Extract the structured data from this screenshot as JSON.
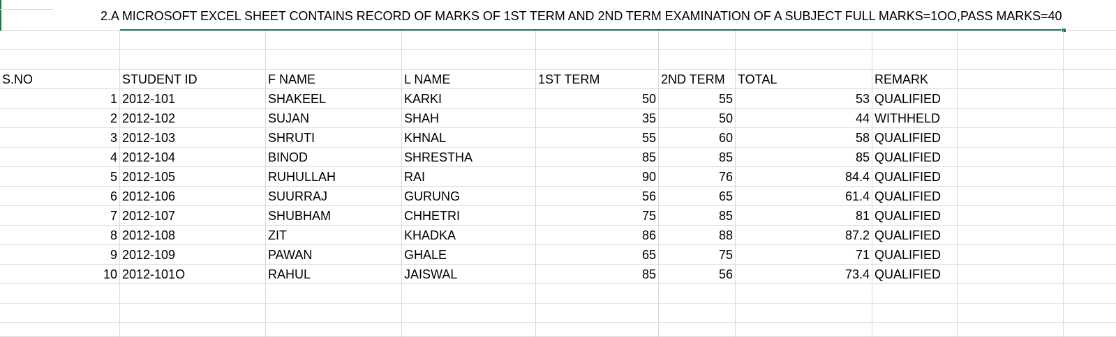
{
  "sheet": {
    "title": "2.A MICROSOFT EXCEL SHEET CONTAINS RECORD OF MARKS OF 1ST TERM AND 2ND TERM EXAMINATION OF A SUBJECT FULL MARKS=1OO,PASS MARKS=40",
    "headers": {
      "sno": "S.NO",
      "student_id": "STUDENT ID",
      "f_name": "F NAME",
      "l_name": "L NAME",
      "first_term": "1ST TERM",
      "second_term": "2ND TERM",
      "total": "TOTAL",
      "remark": "REMARK"
    },
    "rows": [
      {
        "sno": "1",
        "student_id": "2012-101",
        "f_name": "SHAKEEL",
        "l_name": "KARKI",
        "first_term": "50",
        "second_term": "55",
        "total": "53",
        "remark": "QUALIFIED"
      },
      {
        "sno": "2",
        "student_id": "2012-102",
        "f_name": "SUJAN",
        "l_name": "SHAH",
        "first_term": "35",
        "second_term": "50",
        "total": "44",
        "remark": "WITHHELD"
      },
      {
        "sno": "3",
        "student_id": "2012-103",
        "f_name": "SHRUTI",
        "l_name": "KHNAL",
        "first_term": "55",
        "second_term": "60",
        "total": "58",
        "remark": "QUALIFIED"
      },
      {
        "sno": "4",
        "student_id": "2012-104",
        "f_name": "BINOD",
        "l_name": "SHRESTHA",
        "first_term": "85",
        "second_term": "85",
        "total": "85",
        "remark": "QUALIFIED"
      },
      {
        "sno": "5",
        "student_id": "2012-105",
        "f_name": "RUHULLAH",
        "l_name": "RAI",
        "first_term": "90",
        "second_term": "76",
        "total": "84.4",
        "remark": "QUALIFIED"
      },
      {
        "sno": "6",
        "student_id": "2012-106",
        "f_name": "SUURRAJ",
        "l_name": "GURUNG",
        "first_term": "56",
        "second_term": "65",
        "total": "61.4",
        "remark": "QUALIFIED"
      },
      {
        "sno": "7",
        "student_id": "2012-107",
        "f_name": "SHUBHAM",
        "l_name": "CHHETRI",
        "first_term": "75",
        "second_term": "85",
        "total": "81",
        "remark": "QUALIFIED"
      },
      {
        "sno": "8",
        "student_id": "2012-108",
        "f_name": "ZIT",
        "l_name": "KHADKA",
        "first_term": "86",
        "second_term": "88",
        "total": "87.2",
        "remark": "QUALIFIED"
      },
      {
        "sno": "9",
        "student_id": "2012-109",
        "f_name": "PAWAN",
        "l_name": "GHALE",
        "first_term": "65",
        "second_term": "75",
        "total": "71",
        "remark": "QUALIFIED"
      },
      {
        "sno": "10",
        "student_id": "2012-101O",
        "f_name": "RAHUL",
        "l_name": "JAISWAL",
        "first_term": "85",
        "second_term": "56",
        "total": "73.4",
        "remark": "QUALIFIED"
      }
    ]
  },
  "colors": {
    "gridline": "#d9d9d9",
    "selection_accent": "#217346",
    "background": "#ffffff"
  }
}
